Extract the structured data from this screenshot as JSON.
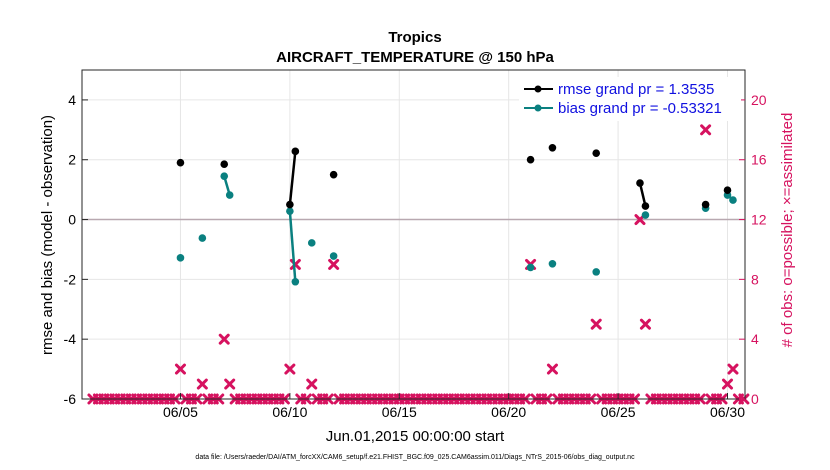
{
  "chart_data": {
    "type": "line",
    "title": "Tropics",
    "subtitle": "AIRCRAFT_TEMPERATURE @ 150 hPa",
    "xlabel": "Jun.01,2015 00:00:00 start",
    "ylabel": "rmse and bias (model - observation)",
    "y2label": "# of obs: o=possible; ×=assimilated",
    "xlim": [
      0.5,
      30.8
    ],
    "ylim": [
      -6,
      5
    ],
    "y2lim": [
      0,
      22
    ],
    "xticks": [
      5,
      10,
      15,
      20,
      25,
      30
    ],
    "xtick_labels": [
      "06/05",
      "06/10",
      "06/15",
      "06/20",
      "06/25",
      "06/30"
    ],
    "yticks": [
      -6,
      -4,
      -2,
      0,
      2,
      4
    ],
    "y2ticks": [
      0,
      4,
      8,
      12,
      16,
      20
    ],
    "legend_position": "top-right",
    "legend": [
      "rmse grand pr = 1.3535",
      "bias grand pr = -0.53321"
    ],
    "series": [
      {
        "name": "rmse",
        "color": "#000000",
        "x": [
          5,
          7,
          7.25,
          10,
          10.25,
          12,
          21,
          22,
          24,
          26,
          26.25,
          29,
          30,
          30.25
        ],
        "values": [
          1.9,
          1.85,
          null,
          0.5,
          2.28,
          1.5,
          2.0,
          2.4,
          2.22,
          1.22,
          0.45,
          0.5,
          0.98,
          null
        ]
      },
      {
        "name": "bias",
        "color": "#0a8080",
        "x": [
          5,
          6,
          7,
          7.25,
          10,
          10.25,
          11,
          12,
          21,
          22,
          24,
          26,
          26.25,
          29,
          30,
          30.25
        ],
        "values": [
          -1.28,
          -0.62,
          1.45,
          0.82,
          0.28,
          -2.08,
          -0.78,
          -1.22,
          -1.6,
          -1.48,
          -1.75,
          null,
          0.15,
          0.38,
          0.82,
          0.65
        ]
      },
      {
        "name": "obs_count",
        "color": "#d6125f",
        "axis": "right",
        "x": [
          5,
          6,
          7,
          7.25,
          10,
          10.25,
          11,
          12,
          21,
          22,
          24,
          26,
          26.25,
          29,
          30,
          30.25
        ],
        "values": [
          2,
          1,
          4,
          1,
          2,
          9,
          1,
          9,
          9,
          2,
          5,
          12,
          5,
          18,
          1,
          2
        ]
      }
    ],
    "zero_counts_x_step": 0.25,
    "footnote": "data file: /Users/raeder/DAI/ATM_forcXX/CAM6_setup/f.e21.FHIST_BGC.f09_025.CAM6assim.011/Diags_NTrS_2015-06/obs_diag_output.nc"
  }
}
